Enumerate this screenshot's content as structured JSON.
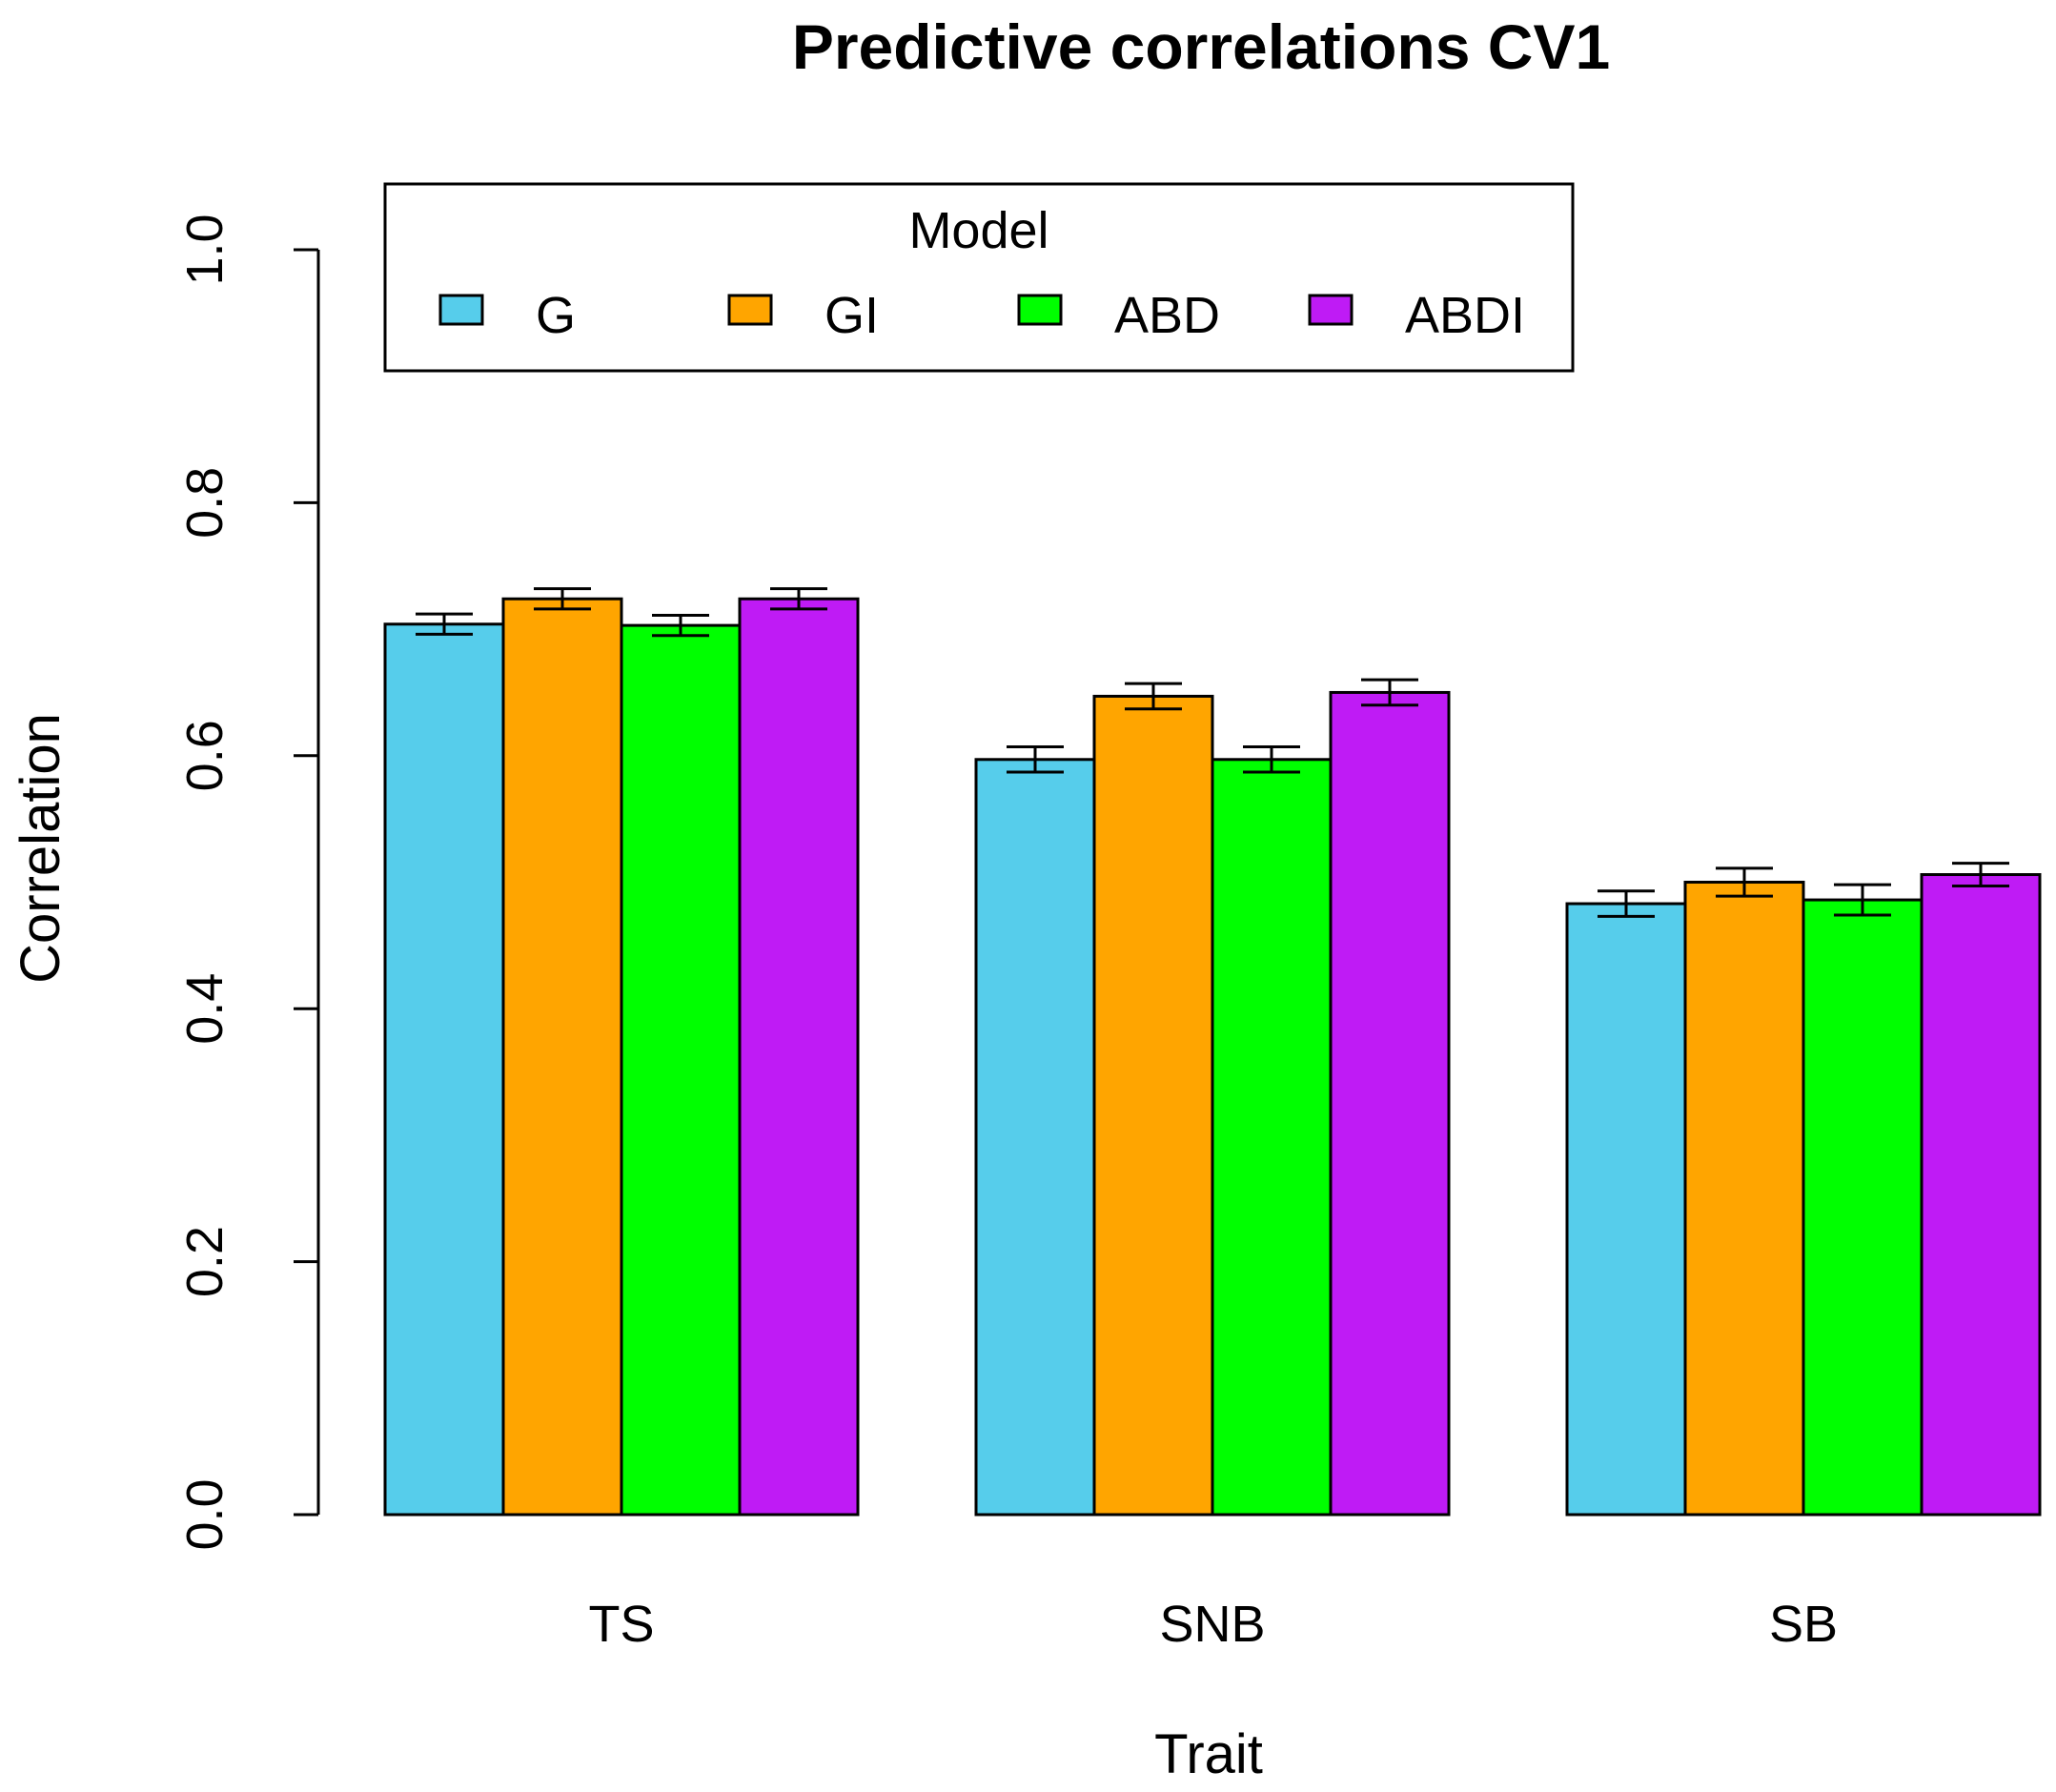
{
  "chart_data": {
    "type": "bar",
    "title": "Predictive correlations CV1",
    "xlabel": "Trait",
    "ylabel": "Correlation",
    "ylim": [
      0,
      1
    ],
    "yticks": [
      "0.0",
      "0.2",
      "0.4",
      "0.6",
      "0.8",
      "1.0"
    ],
    "categories": [
      "TS",
      "SNB",
      "SB"
    ],
    "legend_title": "Model",
    "legend_position": "top",
    "series": [
      {
        "name": "G",
        "color": "#56CDEB",
        "values": [
          0.704,
          0.597,
          0.483
        ],
        "errors": [
          0.008,
          0.01,
          0.01
        ]
      },
      {
        "name": "GI",
        "color": "#FFA500",
        "values": [
          0.724,
          0.647,
          0.5
        ],
        "errors": [
          0.008,
          0.01,
          0.011
        ]
      },
      {
        "name": "ABD",
        "color": "#00FF00",
        "values": [
          0.703,
          0.597,
          0.486
        ],
        "errors": [
          0.008,
          0.01,
          0.012
        ]
      },
      {
        "name": "ABDI",
        "color": "#BF1BF5",
        "values": [
          0.724,
          0.65,
          0.506
        ],
        "errors": [
          0.008,
          0.01,
          0.009
        ]
      }
    ]
  }
}
